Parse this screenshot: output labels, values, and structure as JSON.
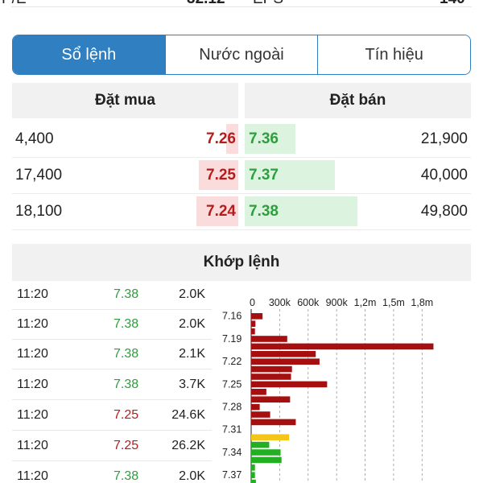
{
  "top_stats": {
    "pe_label": "P/E",
    "pe_value": "32.12",
    "eps_label": "EPS",
    "eps_value": "140"
  },
  "tabs": [
    {
      "label": "Sổ lệnh",
      "active": true
    },
    {
      "label": "Nước ngoài",
      "active": false
    },
    {
      "label": "Tín hiệu",
      "active": false
    }
  ],
  "order_book": {
    "buy_header": "Đặt mua",
    "sell_header": "Đặt bán",
    "rows": [
      {
        "buy_volume": "4,400",
        "buy_price": "7.26",
        "buy_fill": 0.11,
        "sell_price": "7.36",
        "sell_volume": "21,900",
        "sell_fill": 0.45
      },
      {
        "buy_volume": "17,400",
        "buy_price": "7.25",
        "buy_fill": 0.35,
        "sell_price": "7.37",
        "sell_volume": "40,000",
        "sell_fill": 0.8
      },
      {
        "buy_volume": "18,100",
        "buy_price": "7.24",
        "buy_fill": 0.37,
        "sell_price": "7.38",
        "sell_volume": "49,800",
        "sell_fill": 1.0
      }
    ]
  },
  "match": {
    "header": "Khớp lệnh",
    "trades": [
      {
        "time": "11:20",
        "price": "7.38",
        "volume": "2.0K",
        "side": "buy"
      },
      {
        "time": "11:20",
        "price": "7.38",
        "volume": "2.0K",
        "side": "buy"
      },
      {
        "time": "11:20",
        "price": "7.38",
        "volume": "2.1K",
        "side": "buy"
      },
      {
        "time": "11:20",
        "price": "7.38",
        "volume": "3.7K",
        "side": "buy"
      },
      {
        "time": "11:20",
        "price": "7.25",
        "volume": "24.6K",
        "side": "sell"
      },
      {
        "time": "11:20",
        "price": "7.25",
        "volume": "26.2K",
        "side": "sell"
      },
      {
        "time": "11:20",
        "price": "7.38",
        "volume": "2.0K",
        "side": "buy"
      }
    ]
  },
  "colors": {
    "accent": "#2f7fc1",
    "red": "#b71c1c",
    "green": "#2e9e3e",
    "bar_red": "#a50f0f",
    "bar_green": "#22b022",
    "bar_yellow": "#f5c518"
  },
  "chart_data": {
    "type": "bar",
    "orientation": "horizontal",
    "x_ticks": [
      "0",
      "300k",
      "600k",
      "900k",
      "1,2m",
      "1,5m",
      "1,8m"
    ],
    "xlim": [
      0,
      1950000
    ],
    "y_tick_labels": [
      "7.16",
      "7.19",
      "7.22",
      "7.25",
      "7.28",
      "7.31",
      "7.34",
      "7.37"
    ],
    "bars": [
      {
        "price": 7.16,
        "value": 120000,
        "color": "red"
      },
      {
        "price": 7.17,
        "value": 45000,
        "color": "red"
      },
      {
        "price": 7.18,
        "value": 40000,
        "color": "red"
      },
      {
        "price": 7.19,
        "value": 380000,
        "color": "red"
      },
      {
        "price": 7.2,
        "value": 1920000,
        "color": "red"
      },
      {
        "price": 7.21,
        "value": 680000,
        "color": "red"
      },
      {
        "price": 7.22,
        "value": 720000,
        "color": "red"
      },
      {
        "price": 7.23,
        "value": 430000,
        "color": "red"
      },
      {
        "price": 7.24,
        "value": 420000,
        "color": "red"
      },
      {
        "price": 7.25,
        "value": 800000,
        "color": "red"
      },
      {
        "price": 7.26,
        "value": 160000,
        "color": "red"
      },
      {
        "price": 7.27,
        "value": 410000,
        "color": "red"
      },
      {
        "price": 7.28,
        "value": 90000,
        "color": "red"
      },
      {
        "price": 7.29,
        "value": 200000,
        "color": "red"
      },
      {
        "price": 7.3,
        "value": 470000,
        "color": "red"
      },
      {
        "price": 7.31,
        "value": 0,
        "color": "red"
      },
      {
        "price": 7.32,
        "value": 400000,
        "color": "yellow"
      },
      {
        "price": 7.33,
        "value": 190000,
        "color": "green"
      },
      {
        "price": 7.34,
        "value": 310000,
        "color": "green"
      },
      {
        "price": 7.35,
        "value": 320000,
        "color": "green"
      },
      {
        "price": 7.36,
        "value": 40000,
        "color": "green"
      },
      {
        "price": 7.37,
        "value": 40000,
        "color": "green"
      },
      {
        "price": 7.38,
        "value": 50000,
        "color": "green"
      }
    ]
  }
}
